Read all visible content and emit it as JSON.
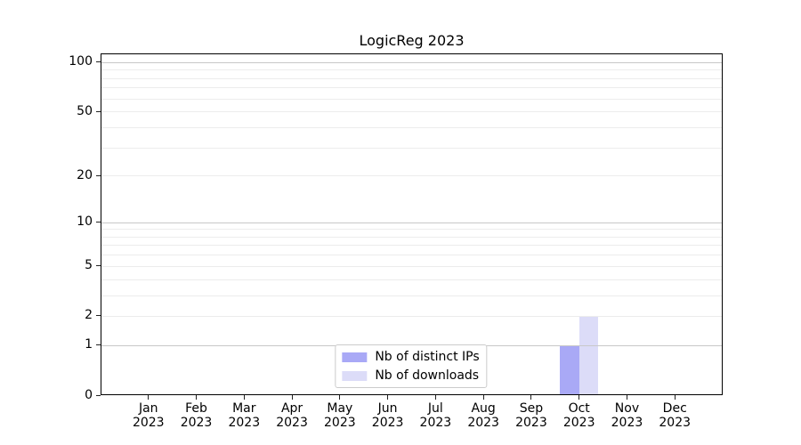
{
  "chart_data": {
    "type": "bar",
    "title": "LogicReg 2023",
    "categories": [
      "Jan",
      "Feb",
      "Mar",
      "Apr",
      "May",
      "Jun",
      "Jul",
      "Aug",
      "Sep",
      "Oct",
      "Nov",
      "Dec"
    ],
    "category_sublabel": "2023",
    "series": [
      {
        "name": "Nb of distinct IPs",
        "color": "#a9a9f6",
        "values": [
          0,
          0,
          0,
          0,
          0,
          0,
          0,
          0,
          0,
          1,
          0,
          0
        ]
      },
      {
        "name": "Nb of downloads",
        "color": "#dcdcf8",
        "values": [
          0,
          0,
          0,
          0,
          0,
          0,
          0,
          0,
          0,
          2,
          0,
          0
        ]
      }
    ],
    "xlabel": "",
    "ylabel": "",
    "yscale": "log1p",
    "ylim": [
      0,
      113
    ],
    "yticks": [
      0,
      1,
      2,
      5,
      10,
      20,
      50,
      100
    ],
    "grid": {
      "orientation": "horizontal",
      "major_values": [
        1,
        10,
        100
      ],
      "minor_values": [
        2,
        3,
        4,
        5,
        6,
        7,
        8,
        9,
        20,
        30,
        40,
        50,
        60,
        70,
        80,
        90
      ],
      "major_color": "#c8c8c8",
      "minor_color": "#ececec",
      "grid_above_bars": true
    },
    "legend_position": "lower center",
    "bar_width_fraction": 0.4
  },
  "axes": {
    "spine_color": "#000000",
    "tick_color": "#222222",
    "text_color": "#000000"
  }
}
